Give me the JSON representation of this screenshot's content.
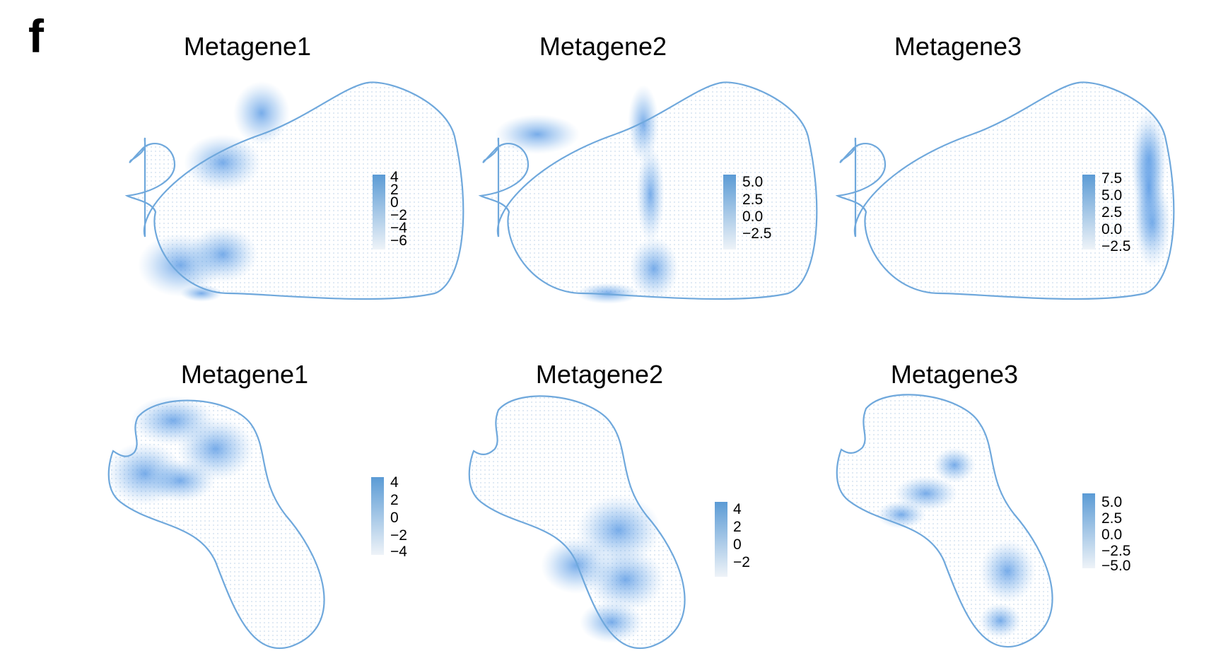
{
  "figure": {
    "panel_label": "f",
    "accent_color": "#5b9bd5",
    "outline_color": "#6fa8dc"
  },
  "chart_data": [
    {
      "type": "heatmap",
      "title": "Metagene1",
      "colorbar_ticks": [
        "4",
        "2",
        "0",
        "−2",
        "−4",
        "−6"
      ]
    },
    {
      "type": "heatmap",
      "title": "Metagene2",
      "colorbar_ticks": [
        "5.0",
        "2.5",
        "0.0",
        "−2.5"
      ]
    },
    {
      "type": "heatmap",
      "title": "Metagene3",
      "colorbar_ticks": [
        "7.5",
        "5.0",
        "2.5",
        "0.0",
        "−2.5"
      ]
    },
    {
      "type": "heatmap",
      "title": "Metagene1",
      "colorbar_ticks": [
        "4",
        "2",
        "0",
        "−2",
        "−4"
      ]
    },
    {
      "type": "heatmap",
      "title": "Metagene2",
      "colorbar_ticks": [
        "4",
        "2",
        "0",
        "−2"
      ]
    },
    {
      "type": "heatmap",
      "title": "Metagene3",
      "colorbar_ticks": [
        "5.0",
        "2.5",
        "0.0",
        "−2.5",
        "−5.0"
      ]
    }
  ]
}
